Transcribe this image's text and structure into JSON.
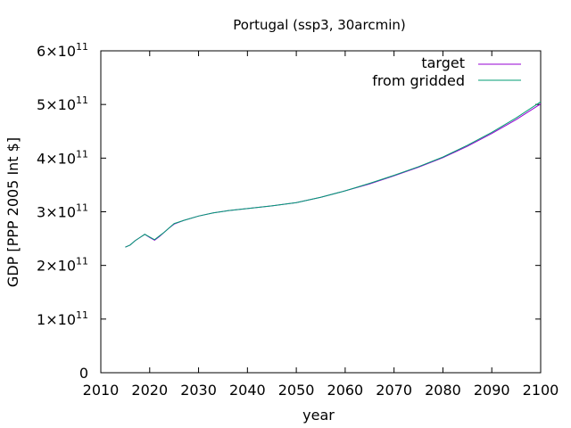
{
  "chart_data": {
    "type": "line",
    "title": "Portugal (ssp3, 30arcmin)",
    "xlabel": "year",
    "ylabel": "GDP [PPP 2005 Int $]",
    "xlim": [
      2010,
      2100
    ],
    "ylim": [
      0,
      600000000000
    ],
    "grid": false,
    "legend_position": "top-right",
    "x_ticks": [
      2010,
      2020,
      2030,
      2040,
      2050,
      2060,
      2070,
      2080,
      2090,
      2100
    ],
    "x_tick_labels": [
      "2010",
      "2020",
      "2030",
      "2040",
      "2050",
      "2060",
      "2070",
      "2080",
      "2090",
      "2100"
    ],
    "y_ticks": [
      {
        "value": 0,
        "mantissa": "0",
        "exp": ""
      },
      {
        "value": 100000000000,
        "mantissa": "1×10",
        "exp": "11"
      },
      {
        "value": 200000000000,
        "mantissa": "2×10",
        "exp": "11"
      },
      {
        "value": 300000000000,
        "mantissa": "3×10",
        "exp": "11"
      },
      {
        "value": 400000000000,
        "mantissa": "4×10",
        "exp": "11"
      },
      {
        "value": 500000000000,
        "mantissa": "5×10",
        "exp": "11"
      },
      {
        "value": 600000000000,
        "mantissa": "6×10",
        "exp": "11"
      }
    ],
    "x": [
      2015,
      2016,
      2017,
      2018,
      2019,
      2020,
      2021,
      2022,
      2023,
      2024,
      2025,
      2027,
      2030,
      2033,
      2036,
      2040,
      2045,
      2050,
      2055,
      2060,
      2065,
      2070,
      2075,
      2080,
      2085,
      2090,
      2095,
      2100
    ],
    "series": [
      {
        "name": "target",
        "color": "#9400d3",
        "values": [
          234000000000,
          238000000000,
          246000000000,
          252000000000,
          258000000000,
          252000000000,
          247000000000,
          254000000000,
          262000000000,
          270000000000,
          277000000000,
          284000000000,
          292000000000,
          298000000000,
          302000000000,
          306000000000,
          311000000000,
          317000000000,
          327000000000,
          339000000000,
          352000000000,
          367000000000,
          383000000000,
          401000000000,
          422000000000,
          446000000000,
          472000000000,
          501000000000
        ]
      },
      {
        "name": "from gridded",
        "color": "#009e73",
        "values": [
          234000000000,
          238000000000,
          246000000000,
          252000000000,
          258000000000,
          253000000000,
          248000000000,
          255000000000,
          262000000000,
          270000000000,
          278000000000,
          284000000000,
          292000000000,
          298000000000,
          302000000000,
          306000000000,
          311000000000,
          317000000000,
          327000000000,
          339000000000,
          353000000000,
          368000000000,
          384000000000,
          402000000000,
          424000000000,
          448000000000,
          475000000000,
          505000000000
        ]
      }
    ]
  }
}
